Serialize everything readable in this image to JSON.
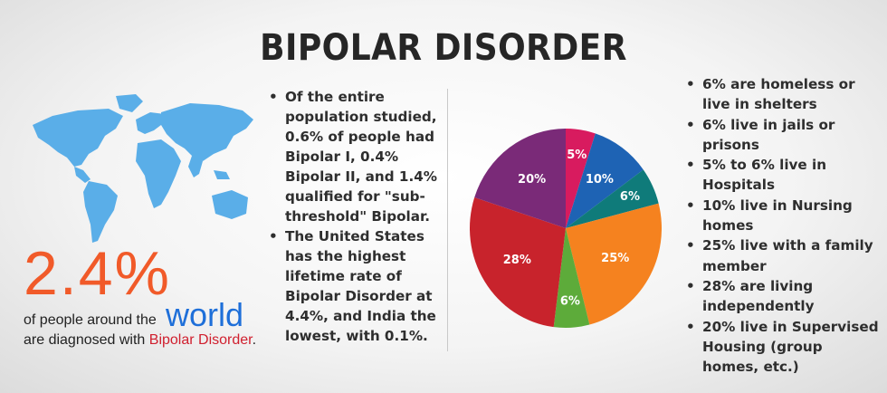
{
  "title": "BIPOLAR DISORDER",
  "left": {
    "stat": "2.4%",
    "world": "world",
    "caption_line1": "of people around the",
    "caption_line2_prefix": "are diagnosed with ",
    "caption_highlight": "Bipolar Disorder",
    "caption_suffix": "."
  },
  "middle_bullets": [
    "Of the entire population studied, 0.6% of people had Bipolar I, 0.4% Bipolar II, and 1.4% qualified for \"sub-threshold\" Bipolar.",
    "The United States has the highest lifetime rate of Bipolar Disorder at 4.4%, and India the lowest, with 0.1%."
  ],
  "right_bullets": [
    "6% are homeless or live in shelters",
    "6% live in jails or prisons",
    "5% to 6% live in Hospitals",
    "10% live in Nursing homes",
    "25% live with a family member",
    "28% are living independently",
    "20% live in Supervised Housing (group homes, etc.)"
  ],
  "colors": {
    "title": "#262626",
    "stat": "#f15a29",
    "world": "#1e6fd9",
    "highlight": "#d0202f",
    "map": "#5aaee8"
  },
  "chart_data": {
    "type": "pie",
    "slices": [
      {
        "value": 5,
        "label": "5%",
        "color": "#d81b5f"
      },
      {
        "value": 10,
        "label": "10%",
        "color": "#1e63b4"
      },
      {
        "value": 6,
        "label": "6%",
        "color": "#0f7b7a"
      },
      {
        "value": 25,
        "label": "25%",
        "color": "#f5821f"
      },
      {
        "value": 6,
        "label": "6%",
        "color": "#5dab3a"
      },
      {
        "value": 28,
        "label": "28%",
        "color": "#c8232c"
      },
      {
        "value": 20,
        "label": "20%",
        "color": "#7a2a78"
      }
    ]
  }
}
